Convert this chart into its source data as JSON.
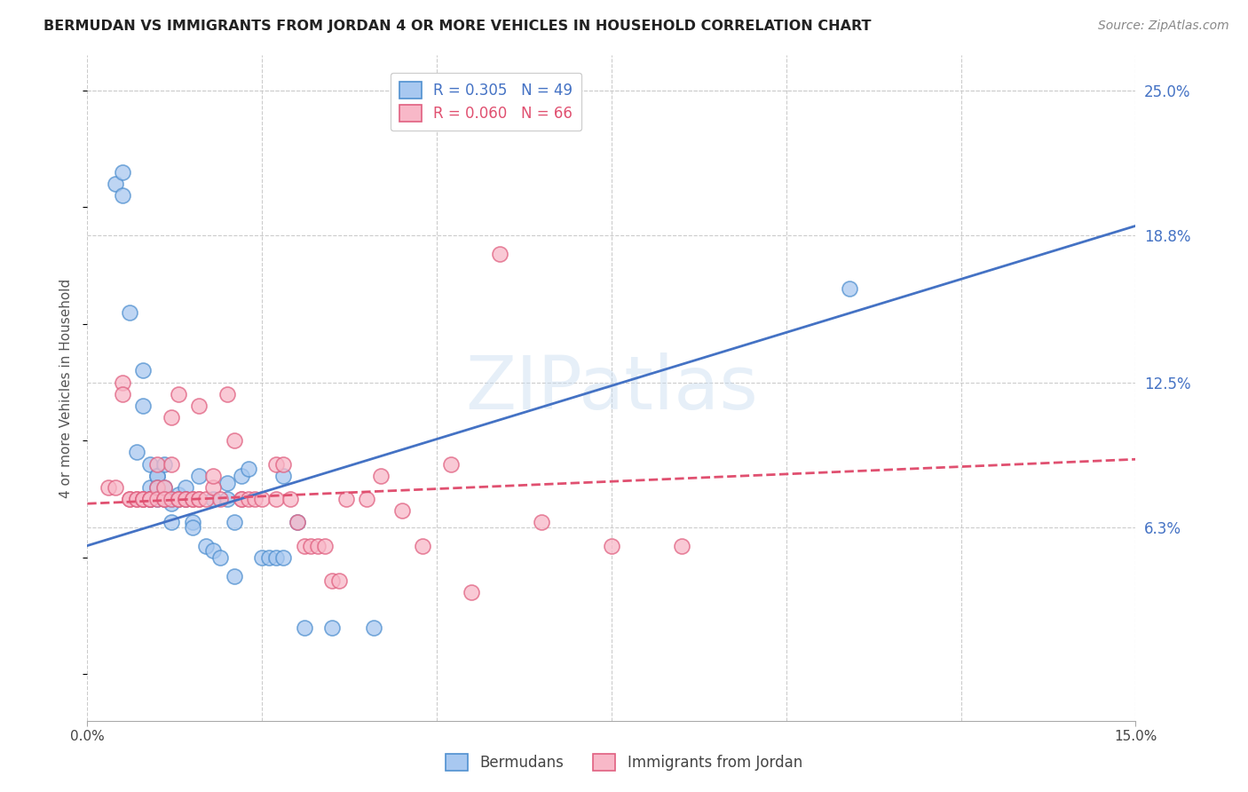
{
  "title": "BERMUDAN VS IMMIGRANTS FROM JORDAN 4 OR MORE VEHICLES IN HOUSEHOLD CORRELATION CHART",
  "source": "Source: ZipAtlas.com",
  "ylabel": "4 or more Vehicles in Household",
  "xlim": [
    0.0,
    0.15
  ],
  "ylim": [
    -0.02,
    0.265
  ],
  "ytick_right_labels": [
    "6.3%",
    "12.5%",
    "18.8%",
    "25.0%"
  ],
  "ytick_right_values": [
    0.063,
    0.125,
    0.188,
    0.25
  ],
  "grid_color": "#cccccc",
  "background_color": "#ffffff",
  "watermark": "ZIPatlas",
  "series": [
    {
      "label": "Bermudans",
      "R": 0.305,
      "N": 49,
      "face_color": "#A8C8F0",
      "edge_color": "#5090D0",
      "line_color": "#4472C4",
      "line_style": "solid",
      "x": [
        0.004,
        0.005,
        0.005,
        0.006,
        0.007,
        0.008,
        0.008,
        0.009,
        0.009,
        0.009,
        0.009,
        0.01,
        0.01,
        0.01,
        0.01,
        0.011,
        0.011,
        0.011,
        0.012,
        0.012,
        0.012,
        0.012,
        0.013,
        0.013,
        0.014,
        0.014,
        0.015,
        0.015,
        0.016,
        0.017,
        0.018,
        0.018,
        0.019,
        0.02,
        0.02,
        0.021,
        0.021,
        0.022,
        0.023,
        0.025,
        0.026,
        0.027,
        0.028,
        0.028,
        0.03,
        0.031,
        0.035,
        0.041,
        0.109
      ],
      "y": [
        0.21,
        0.215,
        0.205,
        0.155,
        0.095,
        0.13,
        0.115,
        0.09,
        0.08,
        0.075,
        0.075,
        0.085,
        0.085,
        0.08,
        0.075,
        0.09,
        0.08,
        0.075,
        0.075,
        0.075,
        0.073,
        0.065,
        0.075,
        0.077,
        0.08,
        0.075,
        0.065,
        0.063,
        0.085,
        0.055,
        0.053,
        0.075,
        0.05,
        0.082,
        0.075,
        0.065,
        0.042,
        0.085,
        0.088,
        0.05,
        0.05,
        0.05,
        0.085,
        0.05,
        0.065,
        0.02,
        0.02,
        0.02,
        0.165
      ],
      "trend_x": [
        0.0,
        0.15
      ],
      "trend_y": [
        0.055,
        0.192
      ]
    },
    {
      "label": "Immigrants from Jordan",
      "R": 0.06,
      "N": 66,
      "face_color": "#F8B8C8",
      "edge_color": "#E06080",
      "line_color": "#E05070",
      "line_style": "dashed",
      "x": [
        0.003,
        0.004,
        0.005,
        0.005,
        0.006,
        0.006,
        0.007,
        0.007,
        0.008,
        0.008,
        0.008,
        0.009,
        0.009,
        0.009,
        0.01,
        0.01,
        0.01,
        0.011,
        0.011,
        0.011,
        0.012,
        0.012,
        0.012,
        0.013,
        0.013,
        0.013,
        0.014,
        0.014,
        0.015,
        0.015,
        0.016,
        0.016,
        0.016,
        0.017,
        0.018,
        0.018,
        0.019,
        0.02,
        0.021,
        0.022,
        0.022,
        0.023,
        0.024,
        0.025,
        0.027,
        0.027,
        0.028,
        0.029,
        0.03,
        0.031,
        0.032,
        0.033,
        0.034,
        0.035,
        0.036,
        0.037,
        0.04,
        0.042,
        0.045,
        0.048,
        0.052,
        0.059,
        0.065,
        0.075,
        0.085,
        0.055
      ],
      "y": [
        0.08,
        0.08,
        0.125,
        0.12,
        0.075,
        0.075,
        0.075,
        0.075,
        0.075,
        0.075,
        0.075,
        0.075,
        0.075,
        0.075,
        0.08,
        0.075,
        0.09,
        0.075,
        0.08,
        0.075,
        0.075,
        0.11,
        0.09,
        0.075,
        0.075,
        0.12,
        0.075,
        0.075,
        0.075,
        0.075,
        0.075,
        0.115,
        0.075,
        0.075,
        0.08,
        0.085,
        0.075,
        0.12,
        0.1,
        0.075,
        0.075,
        0.075,
        0.075,
        0.075,
        0.075,
        0.09,
        0.09,
        0.075,
        0.065,
        0.055,
        0.055,
        0.055,
        0.055,
        0.04,
        0.04,
        0.075,
        0.075,
        0.085,
        0.07,
        0.055,
        0.09,
        0.18,
        0.065,
        0.055,
        0.055,
        0.035
      ],
      "trend_x": [
        0.0,
        0.15
      ],
      "trend_y": [
        0.073,
        0.092
      ]
    }
  ],
  "legend_items": [
    {
      "label": "R = 0.305   N = 49",
      "face_color": "#A8C8F0",
      "edge_color": "#5090D0",
      "text_color": "#4472C4"
    },
    {
      "label": "R = 0.060   N = 66",
      "face_color": "#F8B8C8",
      "edge_color": "#E06080",
      "text_color": "#E05070"
    }
  ],
  "bottom_legend": [
    {
      "label": "Bermudans",
      "face_color": "#A8C8F0",
      "edge_color": "#5090D0"
    },
    {
      "label": "Immigrants from Jordan",
      "face_color": "#F8B8C8",
      "edge_color": "#E06080"
    }
  ]
}
